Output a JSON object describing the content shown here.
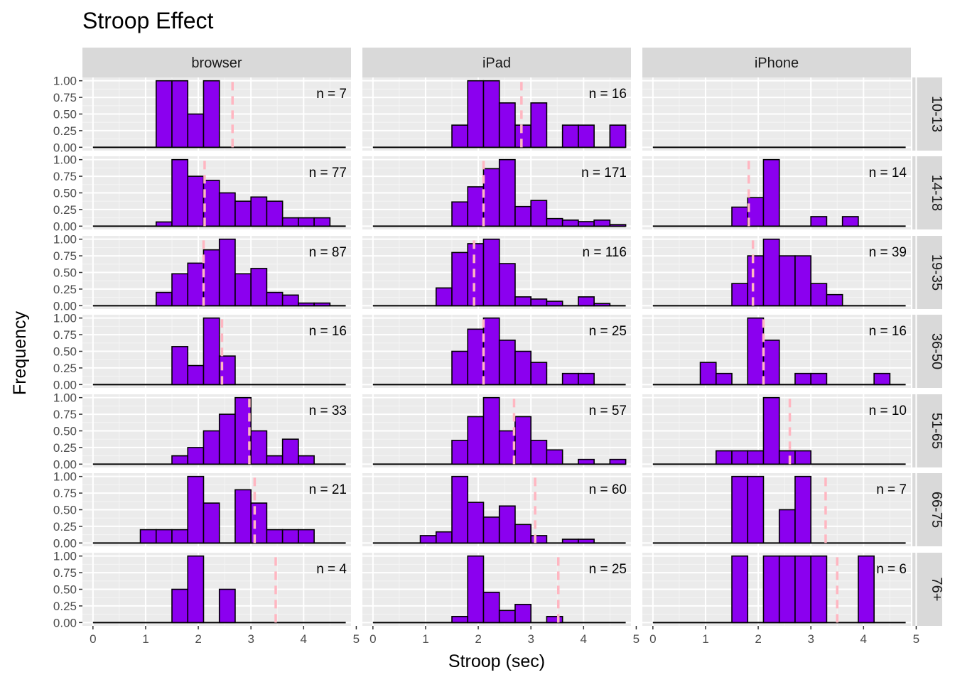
{
  "chart_data": {
    "type": "bar",
    "title": "Stroop Effect",
    "xlabel": "Stroop (sec)",
    "ylabel": "Frequency",
    "xlim": [
      -0.2,
      4.9
    ],
    "ylim": [
      -0.05,
      1.05
    ],
    "x_ticks": [
      "0",
      "1",
      "2",
      "3",
      "4",
      "5"
    ],
    "y_ticks": [
      "0.00",
      "0.25",
      "0.50",
      "0.75",
      "1.00"
    ],
    "bin_width": 0.3,
    "bin_starts": [
      0.0,
      0.3,
      0.6,
      0.9,
      1.2,
      1.5,
      1.8,
      2.1,
      2.4,
      2.7,
      3.0,
      3.3,
      3.6,
      3.9,
      4.2,
      4.5
    ],
    "columns": [
      "browser",
      "iPad",
      "iPhone"
    ],
    "rows": [
      "10-13",
      "14-18",
      "19-35",
      "36-50",
      "51-65",
      "66-75",
      "76+"
    ],
    "bar_color": "#8b00ef",
    "mean_line_color": "#ffb6c1",
    "panels": [
      {
        "device": "browser",
        "age": "10-13",
        "n_label": "n = 7",
        "mean": 2.65,
        "values": [
          0,
          0,
          0,
          0,
          1.0,
          1.0,
          0.5,
          1.0,
          0,
          0,
          0,
          0,
          0,
          0,
          0,
          0
        ]
      },
      {
        "device": "iPad",
        "age": "10-13",
        "n_label": "n = 16",
        "mean": 2.82,
        "values": [
          0,
          0,
          0,
          0,
          0,
          0.333,
          1.0,
          1.0,
          0.667,
          0.333,
          0.667,
          0,
          0.333,
          0.333,
          0,
          0.333
        ]
      },
      {
        "device": "iPhone",
        "age": "10-13",
        "n_label": "",
        "mean": null,
        "values": [
          0,
          0,
          0,
          0,
          0,
          0,
          0,
          0,
          0,
          0,
          0,
          0,
          0,
          0,
          0,
          0
        ]
      },
      {
        "device": "browser",
        "age": "14-18",
        "n_label": "n = 77",
        "mean": 2.12,
        "values": [
          0,
          0,
          0,
          0,
          0.063,
          1.0,
          0.75,
          0.688,
          0.5,
          0.375,
          0.438,
          0.375,
          0.125,
          0.125,
          0.125,
          0
        ]
      },
      {
        "device": "iPad",
        "age": "14-18",
        "n_label": "n = 171",
        "mean": 2.1,
        "values": [
          0,
          0,
          0,
          0,
          0,
          0.364,
          0.591,
          0.864,
          1.0,
          0.295,
          0.386,
          0.114,
          0.091,
          0.068,
          0.091,
          0.023
        ]
      },
      {
        "device": "iPhone",
        "age": "14-18",
        "n_label": "n = 14",
        "mean": 1.82,
        "values": [
          0,
          0,
          0,
          0,
          0,
          0.286,
          0.429,
          1.0,
          0,
          0,
          0.143,
          0,
          0.143,
          0,
          0,
          0
        ]
      },
      {
        "device": "browser",
        "age": "19-35",
        "n_label": "n = 87",
        "mean": 2.1,
        "values": [
          0,
          0,
          0,
          0,
          0.2,
          0.48,
          0.64,
          0.84,
          1.0,
          0.48,
          0.56,
          0.2,
          0.16,
          0.04,
          0.04,
          0
        ]
      },
      {
        "device": "iPad",
        "age": "19-35",
        "n_label": "n = 116",
        "mean": 1.92,
        "values": [
          0,
          0,
          0,
          0,
          0.267,
          0.8,
          0.933,
          1.0,
          0.633,
          0.133,
          0.1,
          0.067,
          0,
          0.133,
          0.033,
          0
        ]
      },
      {
        "device": "iPhone",
        "age": "19-35",
        "n_label": "n = 39",
        "mean": 1.9,
        "values": [
          0,
          0,
          0,
          0,
          0,
          0.333,
          0.75,
          1.0,
          0.75,
          0.75,
          0.333,
          0.167,
          0,
          0,
          0,
          0
        ]
      },
      {
        "device": "browser",
        "age": "36-50",
        "n_label": "n = 16",
        "mean": 2.45,
        "values": [
          0,
          0,
          0,
          0,
          0,
          0.571,
          0.286,
          1.0,
          0.429,
          0,
          0,
          0,
          0,
          0,
          0,
          0
        ]
      },
      {
        "device": "iPad",
        "age": "36-50",
        "n_label": "n = 25",
        "mean": 2.1,
        "values": [
          0,
          0,
          0,
          0,
          0,
          0.5,
          0.833,
          1.0,
          0.667,
          0.5,
          0.333,
          0,
          0.167,
          0.167,
          0,
          0
        ]
      },
      {
        "device": "iPhone",
        "age": "36-50",
        "n_label": "n = 16",
        "mean": 2.1,
        "values": [
          0,
          0,
          0,
          0.333,
          0.167,
          0,
          1.0,
          0.667,
          0,
          0.167,
          0.167,
          0,
          0,
          0,
          0.167,
          0
        ]
      },
      {
        "device": "browser",
        "age": "51-65",
        "n_label": "n = 33",
        "mean": 2.97,
        "values": [
          0,
          0,
          0,
          0,
          0,
          0.125,
          0.25,
          0.5,
          0.75,
          1.0,
          0.5,
          0.125,
          0.375,
          0.125,
          0,
          0
        ]
      },
      {
        "device": "iPad",
        "age": "51-65",
        "n_label": "n = 57",
        "mean": 2.68,
        "values": [
          0,
          0,
          0,
          0,
          0,
          0.357,
          0.714,
          1.0,
          0.5,
          0.714,
          0.357,
          0.214,
          0,
          0.071,
          0,
          0.071
        ]
      },
      {
        "device": "iPhone",
        "age": "51-65",
        "n_label": "n = 10",
        "mean": 2.6,
        "values": [
          0,
          0,
          0,
          0,
          0.2,
          0.2,
          0.2,
          1.0,
          0.2,
          0.2,
          0,
          0,
          0,
          0,
          0,
          0
        ]
      },
      {
        "device": "browser",
        "age": "66-75",
        "n_label": "n = 21",
        "mean": 3.07,
        "values": [
          0,
          0,
          0,
          0.2,
          0.2,
          0.2,
          1.0,
          0.6,
          0,
          0.8,
          0.6,
          0.2,
          0.2,
          0.2,
          0,
          0
        ]
      },
      {
        "device": "iPad",
        "age": "66-75",
        "n_label": "n = 60",
        "mean": 3.08,
        "values": [
          0,
          0,
          0,
          0.111,
          0.167,
          1.0,
          0.611,
          0.389,
          0.556,
          0.278,
          0.111,
          0,
          0.056,
          0.056,
          0,
          0
        ]
      },
      {
        "device": "iPhone",
        "age": "66-75",
        "n_label": "n = 7",
        "mean": 3.28,
        "values": [
          0,
          0,
          0,
          0,
          0,
          1.0,
          1.0,
          0,
          0.5,
          1.0,
          0,
          0,
          0,
          0,
          0,
          0
        ]
      },
      {
        "device": "browser",
        "age": "76+",
        "n_label": "n = 4",
        "mean": 3.47,
        "values": [
          0,
          0,
          0,
          0,
          0,
          0.5,
          1.0,
          0,
          0.5,
          0,
          0,
          0,
          0,
          0,
          0,
          0
        ]
      },
      {
        "device": "iPad",
        "age": "76+",
        "n_label": "n = 25",
        "mean": 3.52,
        "values": [
          0,
          0,
          0,
          0,
          0,
          0.091,
          1.0,
          0.455,
          0.182,
          0.273,
          0,
          0.091,
          0,
          0,
          0,
          0
        ]
      },
      {
        "device": "iPhone",
        "age": "76+",
        "n_label": "n = 6",
        "mean": 3.5,
        "values": [
          0,
          0,
          0,
          0,
          0,
          1.0,
          0,
          1.0,
          1.0,
          1.0,
          1.0,
          0,
          0,
          1.0,
          0,
          0
        ]
      }
    ]
  }
}
